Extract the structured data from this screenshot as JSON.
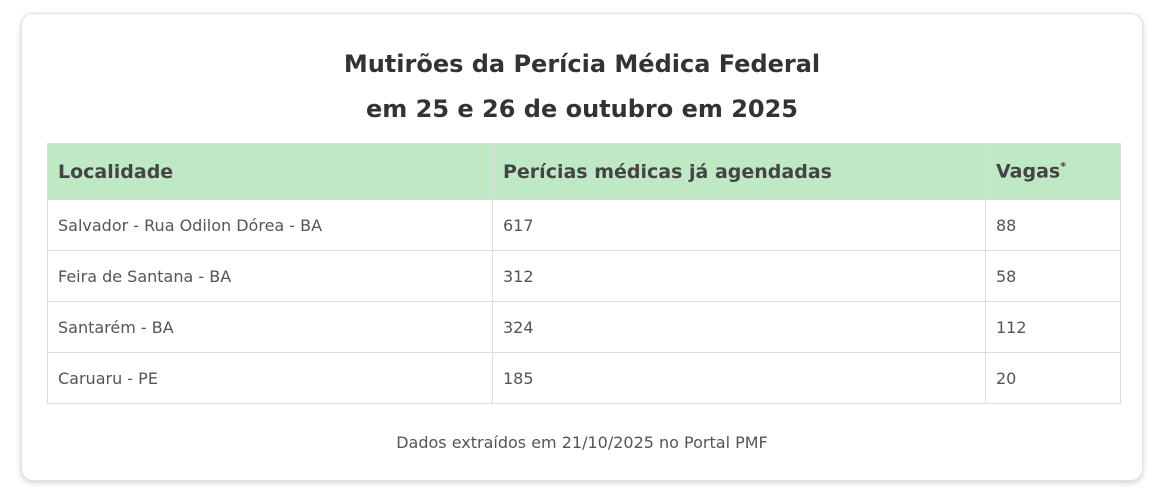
{
  "title": {
    "line1": "Mutirões da Perícia Médica Federal",
    "line2": "em 25 e 26 de outubro em 2025"
  },
  "table": {
    "headers": {
      "localidade": "Localidade",
      "pericias": "Perícias médicas já agendadas",
      "vagas": "Vagas",
      "vagas_mark": "*"
    },
    "rows": [
      {
        "localidade": "Salvador - Rua Odilon Dórea - BA",
        "pericias": "617",
        "vagas": "88"
      },
      {
        "localidade": "Feira de Santana - BA",
        "pericias": "312",
        "vagas": "58"
      },
      {
        "localidade": "Santarém - BA",
        "pericias": "324",
        "vagas": "112"
      },
      {
        "localidade": "Caruaru - PE",
        "pericias": "185",
        "vagas": "20"
      }
    ]
  },
  "footer": "Dados extraídos em 21/10/2025 no Portal PMF",
  "colors": {
    "header_bg": "#bfe8c5",
    "border": "#dcdcdc",
    "text": "#555555"
  }
}
